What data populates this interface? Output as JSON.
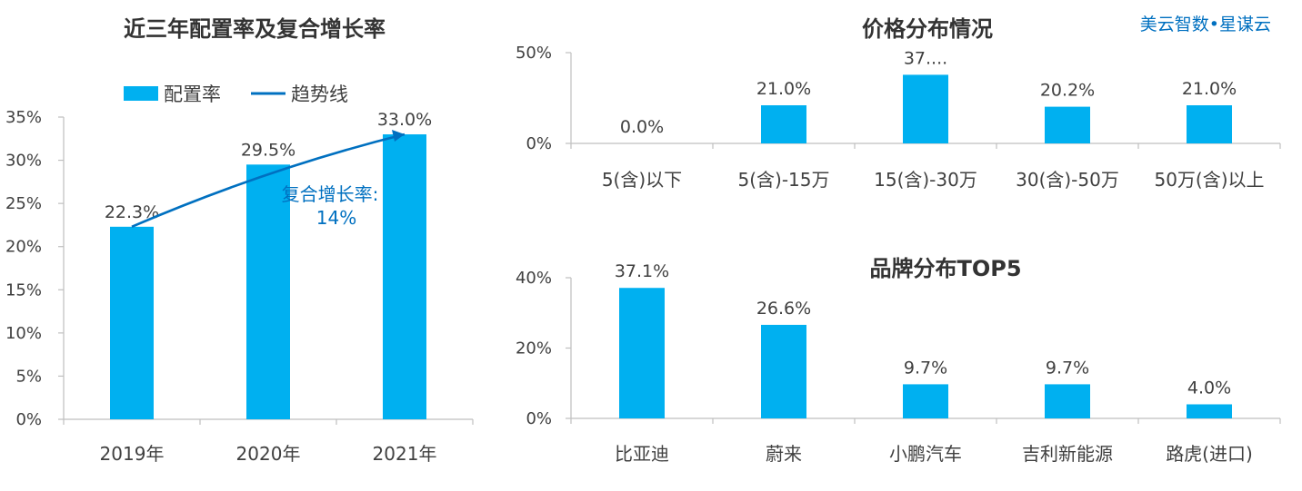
{
  "brand": "美云智数•星谋云",
  "colors": {
    "bar": "#00B0F0",
    "trend": "#0070C0",
    "axis": "#BFBFBF",
    "text": "#404040"
  },
  "chart_data": [
    {
      "id": "rate",
      "type": "bar",
      "title": "近三年配置率及复合增长率",
      "categories": [
        "2019年",
        "2020年",
        "2021年"
      ],
      "series": [
        {
          "name": "配置率",
          "values": [
            22.3,
            29.5,
            33.0
          ]
        },
        {
          "name": "趋势线",
          "type": "line",
          "values": [
            22.3,
            29.5,
            33.0
          ]
        }
      ],
      "data_labels": [
        "22.3%",
        "29.5%",
        "33.0%"
      ],
      "yticks": [
        "0%",
        "5%",
        "10%",
        "15%",
        "20%",
        "25%",
        "30%",
        "35%"
      ],
      "ylim": [
        0,
        35
      ],
      "legend": "top",
      "annotation": {
        "line1": "复合增长率:",
        "line2": "14%"
      }
    },
    {
      "id": "price",
      "type": "bar",
      "title": "价格分布情况",
      "categories": [
        "5(含)以下",
        "5(含)-15万",
        "15(含)-30万",
        "30(含)-50万",
        "50万(含)以上"
      ],
      "values": [
        0.0,
        21.0,
        37.8,
        20.2,
        21.0
      ],
      "data_labels": [
        "0.0%",
        "21.0%",
        "37....",
        "20.2%",
        "21.0%"
      ],
      "yticks": [
        "0%",
        "50%"
      ],
      "ylim": [
        0,
        50
      ]
    },
    {
      "id": "brand",
      "type": "bar",
      "title": "品牌分布TOP5",
      "categories": [
        "比亚迪",
        "蔚来",
        "小鹏汽车",
        "吉利新能源",
        "路虎(进口)"
      ],
      "values": [
        37.1,
        26.6,
        9.7,
        9.7,
        4.0
      ],
      "data_labels": [
        "37.1%",
        "26.6%",
        "9.7%",
        "9.7%",
        "4.0%"
      ],
      "yticks": [
        "0%",
        "20%",
        "40%"
      ],
      "ylim": [
        0,
        40
      ]
    }
  ]
}
